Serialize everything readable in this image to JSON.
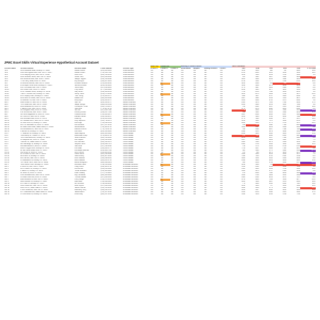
{
  "title": "JPMC Excel Skills Virtual Experience Hypothetical Account Dataset",
  "sections": {
    "mobile": "Mobile Only",
    "products": "Product Sets",
    "channels": "Marketing & Channels Sources",
    "sales": "Sales Performance"
  },
  "headers": [
    "Account Name",
    "Account Address",
    "Decision Maker",
    "Phone Number",
    "Account Type",
    "Product 1",
    "Product 2",
    "Product 3",
    "Social Media",
    "Samples",
    "Catalog Inclusion",
    "Posters",
    "2017",
    "2018",
    "2019",
    "2020",
    "2021",
    "3 YR CAGR"
  ],
  "colors": {
    "mobile": "#ffd400",
    "products": "#93c47d",
    "channels": "#c9daf8",
    "sales": "#f4cccc",
    "high": "#7b2fbf",
    "low": "#ea4335"
  },
  "rows": [
    [
      "SB 1",
      "1193 Wildwood Road, Brooklyn NY 11201",
      "Lawson Moore",
      "(265) 283-6685",
      "Small Business",
      "Yes",
      "Yes",
      "Yes",
      "Yes",
      "Yes",
      "Yes",
      "Yes",
      "1135",
      "1063",
      "808",
      "781",
      "4891",
      "40%"
    ],
    [
      "SB 2",
      "3695 Morningside Lane, New York NY 10017",
      "Lawson Peters",
      "(712) 458-7390",
      "Small Business",
      "Yes",
      "Yes",
      "Yes",
      "Yes",
      "Yes",
      "Yes",
      "Yes",
      "2786",
      "2804",
      "4115",
      "6230",
      "1936",
      "12%"
    ],
    [
      "SB 3",
      "1726 Ladybug Drive, New York NY 10002",
      "Zoila Hurst",
      "(923) 510-6032",
      "Small Business",
      "Yes",
      "Yes",
      "Yes",
      "Yes",
      "Yes",
      "Yes",
      "Yes",
      "5258",
      "1194",
      "6319",
      "4769",
      "5480",
      "1%"
    ],
    [
      "SB 4",
      "2934 Sundown Street, New York NY 10001",
      "Jovani Hurst",
      "(925) 828-4268",
      "Small Business",
      "Yes",
      "Yes",
      "Yes",
      "Yes",
      "Yes",
      "Yes",
      "Yes",
      "955",
      "1221",
      "1987",
      "6990",
      "9430",
      "-30%"
    ],
    [
      "SB 5",
      "889 Sunshine Lane, New York NY 10004",
      "Sawyer Hughes",
      "(913) 552-9698",
      "Small Business",
      "Yes",
      "Yes",
      "Yes",
      "Yes",
      "Yes",
      "Yes",
      "Yes",
      "3221",
      "3080",
      "2333",
      "5432",
      "9961",
      "45%"
    ],
    [
      "SB 6",
      "7739 Cherry Road, Bronx NY 10467",
      "Roy McGlynn",
      "(334) 867-4185",
      "Small Business",
      "Yes",
      "Yes",
      "Yes",
      "Yes",
      "Yes",
      "Yes",
      "Yes",
      "2741",
      "1561",
      "7777",
      "7833",
      "8716",
      "24%"
    ],
    [
      "SB 7",
      "66 Windmill Avenue, New York NY 10024",
      "Lorraine Pecaucci",
      "(678) 284-8330",
      "Small Business",
      "Yes",
      "No",
      "Yes",
      "Yes",
      "Yes",
      "Yes",
      "Yes",
      "6252",
      "6608",
      "945",
      "198",
      "72",
      "-9%"
    ],
    [
      "SB 8",
      "8790 Aspen Circle Drive, Brooklyn NY 11214",
      "Jazmine Rhodes",
      "(203) 231-2126",
      "Small Business",
      "Yes",
      "Yes",
      "Yes",
      "Yes",
      "Yes",
      "Yes",
      "Yes",
      "1146",
      "1060",
      "2174",
      "6818",
      "3049",
      "3%"
    ],
    [
      "SB 9",
      "250 Third Road, New York NY 10035",
      "Vishnu Alley",
      "(857) 243-0120",
      "Small Business",
      "Yes",
      "Yes",
      "Yes",
      "Yes",
      "Yes",
      "Yes",
      "Yes",
      "5771",
      "4907",
      "4881",
      "3300",
      "5020",
      "-3%"
    ],
    [
      "SB 10",
      "342 Coffee Court, Bronx NY 10461",
      "Holly Garza",
      "(277) 404-4626",
      "Small Business",
      "Yes",
      "Yes",
      "Yes",
      "Yes",
      "Yes",
      "Yes",
      "Yes",
      "2144",
      "3645",
      "2077",
      "4865",
      "1633",
      "-8%"
    ],
    [
      "SB 11",
      "46 W. Pleasant Street, Brooklyn NY 11219",
      "Gary Brown",
      "(409) 968-0052",
      "Small Business",
      "Yes",
      "Yes",
      "Yes",
      "Yes",
      "Yes",
      "Yes",
      "Yes",
      "7702",
      "8553",
      "7148",
      "9036",
      "8355",
      "0%"
    ],
    [
      "SB 12",
      "7588 N. Harrison Ave, Brooklyn NY 11217",
      "Jeffrey Harris",
      "(212) 871-9396",
      "Small Business",
      "Yes",
      "No",
      "Yes",
      "Yes",
      "Yes",
      "Yes",
      "Yes",
      "3295",
      "8476",
      "4689",
      "4796",
      "3474",
      "-13%"
    ],
    [
      "SB 13",
      "9570 Shipley Court, Brooklyn NY 11204",
      "Theo Young",
      "(976) 603-1727",
      "Small Business",
      "Yes",
      "Yes",
      "Yes",
      "Yes",
      "Yes",
      "Yes",
      "Yes",
      "1112",
      "1957",
      "4797",
      "6446",
      "8360",
      "8%"
    ],
    [
      "SB 14",
      "8150 Lane Hill Street, New York NY 10025",
      "Dallas Knoll",
      "(628) 802-0998",
      "Small Business",
      "Yes",
      "Yes",
      "Yes",
      "Yes",
      "Yes",
      "Yes",
      "Yes",
      "3667",
      "4991",
      "3553",
      "5535",
      "9272",
      "16%"
    ],
    [
      "SB 15",
      "54 Westborn St, New York NY 10016",
      "Molly Boyd",
      "(230) 664-9787",
      "Small Business",
      "Yes",
      "Yes",
      "Yes",
      "Yes",
      "Yes",
      "Yes",
      "Yes",
      "3954",
      "4009",
      "6795",
      "9175",
      "8660",
      "5%"
    ],
    [
      "MB 1",
      "9848 Lunden St, New York NY 10013",
      "Stan Hill",
      "(268) 450-9707",
      "Medium Business",
      "Yes",
      "Yes",
      "Yes",
      "Yes",
      "Yes",
      "Yes",
      "Yes",
      "2501",
      "5070",
      "7164",
      "7693",
      "6363",
      "17%"
    ],
    [
      "MB 2",
      "7676 Cedar Ave, New York NY 10033",
      "Jasper George",
      "(894) 254-5392",
      "Medium Business",
      "Yes",
      "Yes",
      "Yes",
      "Yes",
      "Yes",
      "Yes",
      "Yes",
      "2931",
      "4249",
      "6153",
      "5261",
      "7089",
      "8%"
    ],
    [
      "MB 3",
      "8952 Redwood Rd, Bronx NY 10451",
      "Christopher Turner",
      "(410) 378-6672",
      "Medium Business",
      "Yes",
      "Yes",
      "Yes",
      "Yes",
      "Yes",
      "Yes",
      "Yes",
      "768",
      "2212",
      "3567",
      "3155",
      "2966",
      "28%"
    ],
    [
      "MB 4",
      "1 Warren Drive, New York NY 10040",
      "Julie Ross",
      "(776) 987-8744",
      "Medium Business",
      "Yes",
      "Yes",
      "Yes",
      "Yes",
      "Yes",
      "Yes",
      "Yes",
      "8775",
      "8178",
      "8996",
      "8235",
      "8600",
      "-1%"
    ],
    [
      "MB 5",
      "435 Bridgeton Lane, Bronx NY 10456",
      "Will Lutz",
      "(617) 428-7968",
      "Medium Business",
      "Yes",
      "Yes",
      "Yes",
      "Yes",
      "Yes",
      "Yes",
      "Yes",
      "9",
      "4466",
      "6553",
      "5442",
      "5161",
      "88%"
    ],
    [
      "MB 6",
      "8 E. Nichols Ave, New York NY 10027",
      "Anthony Brooks",
      "(349) 897-7046",
      "Medium Business",
      "Yes",
      "Yes",
      "Yes",
      "Yes",
      "Yes",
      "Yes",
      "Yes",
      "338",
      "1231",
      "2813",
      "3924",
      "4456",
      "57%"
    ],
    [
      "MB 7",
      "529 North Edgewood St, Bronx NY 10457",
      "Chandra Kumar",
      "(730) 664-6875",
      "Medium Business",
      "Yes",
      "No",
      "Yes",
      "Yes",
      "Yes",
      "Yes",
      "Yes",
      "3097",
      "2460",
      "2244",
      "2097",
      "1883",
      "-20%"
    ],
    [
      "MB 8",
      "69 Thorne St, New York NY 10128",
      "Brandon James",
      "(314) 524-2147",
      "Medium Business",
      "Yes",
      "Yes",
      "Yes",
      "Yes",
      "Yes",
      "Yes",
      "Yes",
      "1250",
      "1234",
      "3511",
      "6213",
      "7088",
      "35%"
    ],
    [
      "MB 9",
      "962 Gonzales Lane, Bronx NY 10472",
      "Nika Ang",
      "(213) 863-1362",
      "Medium Business",
      "Yes",
      "Yes",
      "Yes",
      "Yes",
      "Yes",
      "Yes",
      "Yes",
      "1775",
      "1120",
      "2694",
      "5877",
      "5970",
      "12%"
    ],
    [
      "MB 10",
      "207 Randall Mill Dr, New York NY 10003",
      "Kelly Stephens",
      "(650) 738-6472",
      "Medium Business",
      "Yes",
      "Yes",
      "Yes",
      "Yes",
      "Yes",
      "Yes",
      "Yes",
      "3150",
      "1412",
      "7170",
      "4669",
      "8555",
      "-3%"
    ],
    [
      "MB 11",
      "52 Louis Crest St, Brooklyn NY 11211",
      "Rita Volgo",
      "(734) 896-1039",
      "Medium Business",
      "Yes",
      "No",
      "Yes",
      "Yes",
      "Yes",
      "Yes",
      "Yes",
      "6356",
      "6116",
      "5775",
      "3735",
      "5178",
      "-12%"
    ],
    [
      "MB 12",
      "8457 W. Manhattan St, Bronx NY 10462",
      "Neil Richards",
      "(907) 547-2142",
      "Medium Business",
      "Yes",
      "Yes",
      "Yes",
      "Yes",
      "Yes",
      "Yes",
      "Yes",
      "339",
      "271",
      "5988",
      "7139",
      "8413",
      "129%"
    ],
    [
      "MB 13",
      "62 Lower River Road, Staten Island, NY 10308",
      "Zelina Adeline",
      "(742) 983-6710",
      "Medium Business",
      "Yes",
      "Yes",
      "Yes",
      "Yes",
      "Yes",
      "Yes",
      "Yes",
      "6069",
      "6127",
      "3213",
      "8568",
      "3095",
      "-6%"
    ],
    [
      "MB 14",
      "401 Brookwood Ln, New York NY 10007",
      "Darlene Pritchen",
      "(778) 786-8734",
      "Medium Business",
      "Yes",
      "Yes",
      "Yes",
      "Yes",
      "Yes",
      "Yes",
      "Yes",
      "512",
      "4142",
      "6687",
      "7494",
      "7984",
      "84%"
    ],
    [
      "MB 15",
      "5 Bennett St, Brooklyn NY 11207",
      "Karl Lamo",
      "(224) 564-3228",
      "Medium Business",
      "Yes",
      "Yes",
      "Yes",
      "Yes",
      "Yes",
      "Yes",
      "Yes",
      "2493",
      "2255",
      "2379",
      "3893",
      "5093",
      "16%"
    ],
    [
      "OR 1",
      "77 Gilkerson St, Brooklyn NY 11213",
      "Jesse Mayhoe",
      "(821) 581-1802",
      "Online Retailer",
      "Yes",
      "Yes",
      "Yes",
      "Yes",
      "Yes",
      "Yes",
      "Yes",
      "2310",
      "3836",
      "5395",
      "6035",
      "6790",
      "25%"
    ],
    [
      "OR 2",
      "7983 Bishop St, Yonkers NY 10701",
      "Rasmussen Peep",
      "(371) 880-1746",
      "Online Retailer",
      "Yes",
      "Yes",
      "Yes",
      "Yes",
      "Yes",
      "Yes",
      "Yes",
      "238",
      "290",
      "9462",
      "2954",
      "3887",
      "98%"
    ],
    [
      "OR 3",
      "7225 Greenwood Ave, Brooklyn NY 11215",
      "Janet Anderson",
      "(924) 516-6966",
      "Online Retailer",
      "Yes",
      "Yes",
      "Yes",
      "Yes",
      "Yes",
      "Yes",
      "Yes",
      "6373",
      "5860",
      "3667",
      "7499",
      "6920",
      "-1%"
    ],
    [
      "OR 4",
      "53 Lafayette Ave, Bronx NY 10461",
      "Milo Waples",
      "(616) 910-3846",
      "Online Retailer",
      "Yes",
      "Yes",
      "Yes",
      "Yes",
      "Yes",
      "Yes",
      "Yes",
      "3307",
      "3080",
      "4909",
      "6981",
      "7597",
      "7%"
    ],
    [
      "OR 5",
      "7698 Elm St, Staten Island NY 10306",
      "Leo Hamzeen",
      "(320) 431-3670",
      "Online Retailer",
      "Yes",
      "Yes",
      "Yes",
      "Yes",
      "Yes",
      "Yes",
      "Yes",
      "3383",
      "5140",
      "4173",
      "6588",
      "3050",
      "-9%"
    ],
    [
      "OR 6",
      "429 Stoneleigh St, Brooklyn NY 11206",
      "Stephen Harris",
      "(258) 848-7476",
      "Online Retailer",
      "Yes",
      "Yes",
      "Yes",
      "Yes",
      "Yes",
      "Yes",
      "Yes",
      "2581",
      "3759",
      "3364",
      "5063",
      "7006",
      "31%"
    ],
    [
      "OR 7",
      "348 Beechwood Dr, Bronx NY 10466",
      "Joan Amer",
      "(337) 535-9508",
      "Online Retailer",
      "Yes",
      "Yes",
      "Yes",
      "Yes",
      "Yes",
      "Yes",
      "Yes",
      "743",
      "3772",
      "4413",
      "8758",
      "2721",
      "-16%"
    ],
    [
      "OR 8",
      "9932 N. Argyle Court, Brooklyn NY 11237",
      "Kurt Isaac",
      "(616) 823-5776",
      "Online Retailer",
      "Yes",
      "Yes",
      "Yes",
      "Yes",
      "Yes",
      "Yes",
      "Yes",
      "7763",
      "6957",
      "3689",
      "7161",
      "6267",
      "-6%"
    ],
    [
      "OR 9",
      "82 San Carlos Road, Bronx NY 10467",
      "Dominique Jackman",
      "(236) 686-7536",
      "Online Retailer",
      "Yes",
      "Yes",
      "Yes",
      "Yes",
      "Yes",
      "Yes",
      "Yes",
      "405",
      "5626",
      "5775",
      "3421",
      "5552",
      "147%"
    ],
    [
      "OR 10",
      "398 Griffey St, Bronx NY 10472",
      "Larry Harmer",
      "(342) 889-1238",
      "Online Retailer",
      "Yes",
      "Yes",
      "Yes",
      "Yes",
      "Yes",
      "Yes",
      "Yes",
      "370",
      "848",
      "8373",
      "4856",
      "2176",
      "2%"
    ],
    [
      "OR 11",
      "32 Princess St, New York NY 10031",
      "Carter Wilcox",
      "(885) 432-8688",
      "Online Retailer",
      "Yes",
      "No",
      "Yes",
      "Yes",
      "Yes",
      "Yes",
      "Yes",
      "5640",
      "5806",
      "6259",
      "6220",
      "3379",
      "7%"
    ],
    [
      "OR 12",
      "9215 Bloor St, Brooklyn NY 11220",
      "Julie Anthony",
      "(383) 987-2950",
      "Online Retailer",
      "Yes",
      "Yes",
      "Yes",
      "Yes",
      "Yes",
      "Yes",
      "Yes",
      "7694",
      "7016",
      "6765",
      "1521",
      "5549",
      "-2%"
    ],
    [
      "OR 13",
      "836 Hull Ave, New York NY 10019",
      "Kevin Gandhe",
      "(502) 899-4230",
      "Online Retailer",
      "Yes",
      "Yes",
      "Yes",
      "Yes",
      "Yes",
      "Yes",
      "Yes",
      "6891",
      "5452",
      "3341",
      "6540",
      "4340",
      "-9%"
    ],
    [
      "OR 14",
      "45 Glassworks St, Brooklyn NY 11211",
      "Baron Baldwin",
      "(380) 265-5736",
      "Online Retailer",
      "Yes",
      "Yes",
      "Yes",
      "Yes",
      "Yes",
      "Yes",
      "Yes",
      "4432",
      "3806",
      "9103",
      "3848",
      "8116",
      "25%"
    ],
    [
      "OR 15",
      "7117 Berlin Hill Dr, New York NY 10009",
      "Barrett Broughton",
      "(988) 628-4621",
      "Online Retailer",
      "Yes",
      "Yes",
      "Yes",
      "Yes",
      "Yes",
      "Yes",
      "Yes",
      "454",
      "6153",
      "3799",
      "6664",
      "9717",
      "103%"
    ],
    [
      "WD 1",
      "7284 Canton Court, Brooklyn NY 11236",
      "McFarlan Kraus",
      "(709) 553-3818",
      "Wholesale Distributor",
      "Yes",
      "No",
      "Yes",
      "Yes",
      "Yes",
      "Yes",
      "Yes",
      "8136",
      "1306",
      "726",
      "228",
      "49",
      "-52%"
    ],
    [
      "WD 2",
      "8 Oxford St, New York NY 10023",
      "Craig Collins",
      "(609) 484-5798",
      "Wholesale Distributor",
      "Yes",
      "Yes",
      "Yes",
      "Yes",
      "Yes",
      "Yes",
      "Yes",
      "5613",
      "2161",
      "3643",
      "4554",
      "7130",
      "6%"
    ],
    [
      "WD 3",
      "8970 Franklin St, Brooklyn NY 11233",
      "Dionna Lam",
      "(812) 246-6628",
      "Wholesale Distributor",
      "Yes",
      "Yes",
      "Yes",
      "Yes",
      "Yes",
      "Yes",
      "Yes",
      "1501",
      "4803",
      "3393",
      "5738",
      "5832",
      "40%"
    ],
    [
      "WD 4",
      "2 Walnut St, Brooklyn NY 11216",
      "Tomas Goldstein",
      "(312) 689-6926",
      "Wholesale Distributor",
      "Yes",
      "Yes",
      "Yes",
      "Yes",
      "Yes",
      "Yes",
      "Yes",
      "6664",
      "4076",
      "6797",
      "1340",
      "5049",
      "-9%"
    ],
    [
      "WD 5",
      "22 Sutton St, Bronx NY 10451",
      "Anahi Hokkley",
      "(707) 765-8425",
      "Wholesale Distributor",
      "Yes",
      "Yes",
      "Yes",
      "Yes",
      "Yes",
      "Yes",
      "Yes",
      "879",
      "2438",
      "7396",
      "8810",
      "5930",
      "89%"
    ],
    [
      "WD 6",
      "1561 Woodland Ave, New York NY 10021",
      "Ray Hernandez",
      "(988) 908-6800",
      "Wholesale Distributor",
      "Yes",
      "Yes",
      "Yes",
      "Yes",
      "Yes",
      "Yes",
      "Yes",
      "6393",
      "1708",
      "5989",
      "3653",
      "5864",
      "-3%"
    ],
    [
      "WD 7",
      "16 Lower River Ave, Bronx NY 10461",
      "Thomas Stewart",
      "(857) 840-1095",
      "Wholesale Distributor",
      "Yes",
      "Yes",
      "Yes",
      "Yes",
      "Yes",
      "Yes",
      "Yes",
      "1382",
      "2161",
      "8153",
      "8073",
      "7074",
      "72%"
    ],
    [
      "WD 8",
      "8680 Ashwood St, New York NY 10011",
      "Henry Lange",
      "(706) 475-5312",
      "Wholesale Distributor",
      "Yes",
      "No",
      "Yes",
      "Yes",
      "Yes",
      "Yes",
      "Yes",
      "6751",
      "9633",
      "7533",
      "5068",
      "4277",
      "-14%"
    ],
    [
      "WD 9",
      "6288 Goodwin St, Brooklyn NY 11211",
      "Mike Rees",
      "(718) 628-1022",
      "Wholesale Distributor",
      "Yes",
      "Yes",
      "Yes",
      "Yes",
      "Yes",
      "Yes",
      "Yes",
      "1203",
      "1160",
      "6487",
      "6370",
      "4681",
      "29%"
    ],
    [
      "WD 10",
      "9787 Bath St, Brooklyn NY 11215",
      "Ian Schmitter",
      "(709) 828-9186",
      "Wholesale Distributor",
      "Yes",
      "Yes",
      "Yes",
      "Yes",
      "Yes",
      "Yes",
      "Yes",
      "776",
      "3638",
      "3612",
      "8533",
      "7621",
      "48%"
    ],
    [
      "WD 11",
      "4483 Ocean Ave, New York NY 10039",
      "Aiden Leyton",
      "(357) 622-1584",
      "Wholesale Distributor",
      "Yes",
      "Yes",
      "Yes",
      "Yes",
      "Yes",
      "Yes",
      "Yes",
      "1293",
      "1494",
      "747",
      "3220",
      "5838",
      "44%"
    ],
    [
      "WD 12",
      "9424 Pine St, Staten Island NY 10303",
      "Warner Mitchell",
      "(416) 554-9038",
      "Wholesale Distributor",
      "Yes",
      "Yes",
      "Yes",
      "Yes",
      "Yes",
      "Yes",
      "Yes",
      "8834",
      "4460",
      "3779",
      "9181",
      "1574",
      "-33%"
    ],
    [
      "WD 13",
      "1 Perth Road Ave, New York NY 10026",
      "Rasmalmy Perry",
      "(496) 895-5555",
      "Wholesale Distributor",
      "Yes",
      "Yes",
      "Yes",
      "Yes",
      "Yes",
      "Yes",
      "Yes",
      "1263",
      "2117",
      "8442",
      "8853",
      "5909",
      "58%"
    ],
    [
      "WD 14",
      "9577 Racetrack Ave, Staten Island NY 10312",
      "Valeria Martin",
      "(781) 567-3140",
      "Wholesale Distributor",
      "Yes",
      "Yes",
      "Yes",
      "Yes",
      "Yes",
      "Yes",
      "Yes",
      "1652",
      "8554",
      "1932",
      "8155",
      "5836",
      "37%"
    ],
    [
      "WD 15",
      "174 Del Monte St, Brooklyn NY 11234",
      "Amira Gray",
      "(980) 637-5452",
      "Wholesale Distributor",
      "Yes",
      "Yes",
      "Yes",
      "Yes",
      "Yes",
      "Yes",
      "Yes",
      "5610",
      "1554",
      "6554",
      "6796",
      "7788",
      "8%"
    ]
  ]
}
